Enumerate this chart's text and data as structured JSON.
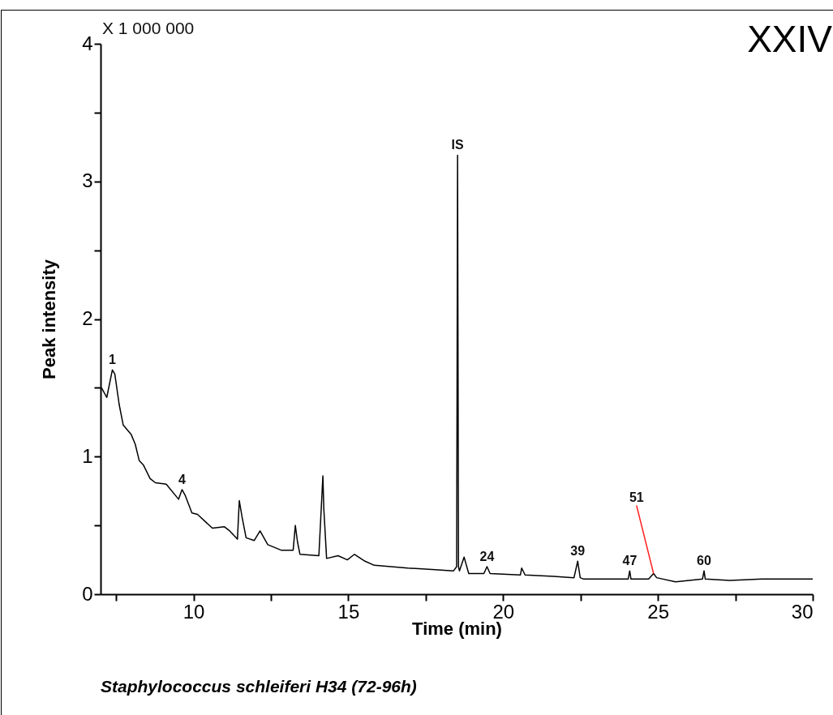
{
  "chart_data": {
    "type": "line",
    "title": "XXIV",
    "xlabel": "Time (min)",
    "ylabel": "Peak intensity",
    "xlim": [
      7,
      30
    ],
    "ylim": [
      0,
      4
    ],
    "xticks": [
      {
        "value": 7.5,
        "label": null
      },
      10,
      {
        "value": 12.5,
        "label": null
      },
      15,
      {
        "value": 17.5,
        "label": null
      },
      20,
      {
        "value": 22.5,
        "label": null
      },
      25,
      {
        "value": 27.5,
        "label": null
      },
      30
    ],
    "yticks": [
      0,
      {
        "value": 0.5,
        "label": null
      },
      1,
      {
        "value": 1.5,
        "label": null
      },
      2,
      {
        "value": 2.5,
        "label": null
      },
      3,
      {
        "value": 3.5,
        "label": null
      },
      4
    ],
    "grid": false,
    "marker": "none",
    "line_style": "solid",
    "series": [
      {
        "color": "#000000",
        "x": [
          7.03,
          7.2,
          7.38,
          7.46,
          7.6,
          7.73,
          7.99,
          8.12,
          8.25,
          8.38,
          8.6,
          8.77,
          9.12,
          9.52,
          9.63,
          9.73,
          9.95,
          10.13,
          10.61,
          11.0,
          11.17,
          11.42,
          11.48,
          11.57,
          11.7,
          11.96,
          12.15,
          12.4,
          12.83,
          13.22,
          13.29,
          13.36,
          13.44,
          14.05,
          14.18,
          14.21,
          14.3,
          14.67,
          14.97,
          15.2,
          15.54,
          15.84,
          16.92,
          17.71,
          18.4,
          18.5,
          18.53,
          18.56,
          18.59,
          18.74,
          18.89,
          19.38,
          19.48,
          19.58,
          20.56,
          20.6,
          20.71,
          21.64,
          22.29,
          22.41,
          22.49,
          22.6,
          23.39,
          24.04,
          24.09,
          24.13,
          24.7,
          24.86,
          24.96,
          25.57,
          26.44,
          26.49,
          26.53,
          27.32,
          28.36,
          30.0
        ],
        "values": [
          1.5,
          1.43,
          1.63,
          1.6,
          1.38,
          1.23,
          1.16,
          1.09,
          0.97,
          0.94,
          0.84,
          0.81,
          0.8,
          0.69,
          0.76,
          0.72,
          0.59,
          0.58,
          0.48,
          0.49,
          0.46,
          0.4,
          0.68,
          0.56,
          0.41,
          0.39,
          0.46,
          0.36,
          0.32,
          0.32,
          0.5,
          0.38,
          0.29,
          0.28,
          0.86,
          0.62,
          0.26,
          0.28,
          0.25,
          0.29,
          0.24,
          0.21,
          0.19,
          0.18,
          0.17,
          0.2,
          3.19,
          0.2,
          0.17,
          0.27,
          0.15,
          0.15,
          0.2,
          0.15,
          0.14,
          0.19,
          0.14,
          0.13,
          0.12,
          0.24,
          0.12,
          0.11,
          0.11,
          0.11,
          0.17,
          0.11,
          0.11,
          0.15,
          0.12,
          0.09,
          0.11,
          0.17,
          0.11,
          0.1,
          0.11,
          0.11
        ]
      }
    ],
    "annotations": [
      "X 1 000 000",
      "Staphylococcus schleiferi H34 (72-96h)",
      {
        "text": "1",
        "x": 7.38,
        "y": 1.63
      },
      {
        "text": "4",
        "x": 9.63,
        "y": 0.76
      },
      {
        "text": "IS",
        "x": 18.53,
        "y": 3.19
      },
      {
        "text": "24",
        "x": 19.48,
        "y": 0.2
      },
      {
        "text": "39",
        "x": 22.41,
        "y": 0.24
      },
      {
        "text": "47",
        "x": 24.09,
        "y": 0.17
      },
      {
        "text": "51",
        "x": 24.86,
        "y": 0.15
      },
      {
        "text": "60",
        "x": 26.49,
        "y": 0.17
      }
    ]
  }
}
